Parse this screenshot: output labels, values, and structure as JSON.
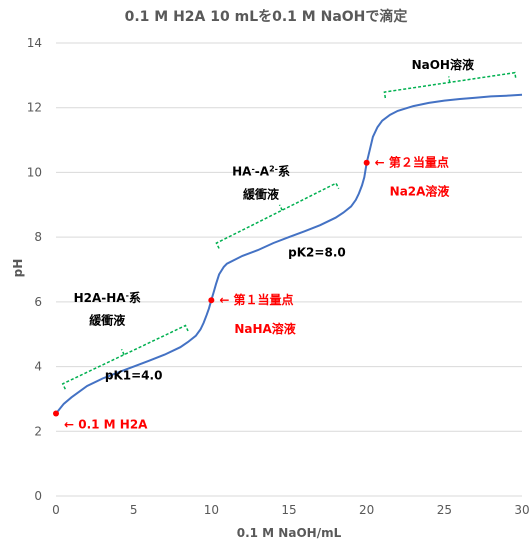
{
  "chart_data": {
    "type": "line",
    "title": "0.1 M H2A 10 mLを0.1 M NaOHで滴定",
    "xlabel": "0.1 M NaOH/mL",
    "ylabel": "pH",
    "xlim": [
      0,
      30
    ],
    "ylim": [
      0,
      14
    ],
    "x_ticks": [
      0,
      5,
      10,
      15,
      20,
      25,
      30
    ],
    "y_ticks": [
      0,
      2,
      4,
      6,
      8,
      10,
      12,
      14
    ],
    "grid": "horizontal",
    "colors": {
      "curve": "#4472C4",
      "points": "#FF0000",
      "bracket": "#00B050"
    },
    "series": [
      {
        "x": [
          0,
          0.5,
          1,
          2,
          3,
          4,
          5,
          6,
          7,
          8,
          8.5,
          9,
          9.3,
          9.5,
          9.7,
          9.85,
          10,
          10.15,
          10.3,
          10.5,
          10.8,
          11,
          12,
          13,
          14,
          15,
          16,
          17,
          18,
          18.5,
          19,
          19.3,
          19.5,
          19.7,
          19.85,
          20,
          20.2,
          20.4,
          20.7,
          21,
          21.5,
          22,
          23,
          24,
          25,
          26,
          27,
          28,
          29,
          30
        ],
        "y": [
          2.55,
          2.85,
          3.05,
          3.4,
          3.63,
          3.82,
          4.0,
          4.18,
          4.37,
          4.6,
          4.76,
          4.95,
          5.15,
          5.35,
          5.6,
          5.8,
          6.05,
          6.3,
          6.55,
          6.85,
          7.08,
          7.18,
          7.42,
          7.6,
          7.82,
          8.0,
          8.18,
          8.37,
          8.6,
          8.76,
          8.95,
          9.15,
          9.35,
          9.6,
          9.85,
          10.3,
          10.7,
          11.1,
          11.4,
          11.6,
          11.78,
          11.9,
          12.05,
          12.15,
          12.22,
          12.27,
          12.31,
          12.35,
          12.37,
          12.4
        ]
      }
    ],
    "points": [
      {
        "x": 0,
        "y": 2.55,
        "label": "← 0.1 M H2A"
      },
      {
        "x": 10,
        "y": 6.05,
        "label": "← 第１当量点",
        "sublabel": "NaHA溶液"
      },
      {
        "x": 20,
        "y": 10.3,
        "label": "← 第２当量点",
        "sublabel": "Na2A溶液"
      }
    ],
    "annotations": [
      {
        "text": "pK1=4.0",
        "x": 5,
        "y": 3.6
      },
      {
        "text": "pK2=8.0",
        "x": 16.8,
        "y": 7.4
      },
      {
        "text": "H2A-HA",
        "sup": "-",
        "text2": "系",
        "x": 3.3,
        "y": 6.0
      },
      {
        "text": "緩衝液",
        "x": 3.3,
        "y": 5.3
      },
      {
        "text": "HA",
        "sup": "-",
        "text2": "-A",
        "sup2": "2-",
        "text3": "系",
        "x": 13.2,
        "y": 9.9
      },
      {
        "text": "緩衝液",
        "x": 13.2,
        "y": 9.2
      },
      {
        "text": "NaOH溶液",
        "x": 24.9,
        "y": 13.2
      }
    ]
  }
}
